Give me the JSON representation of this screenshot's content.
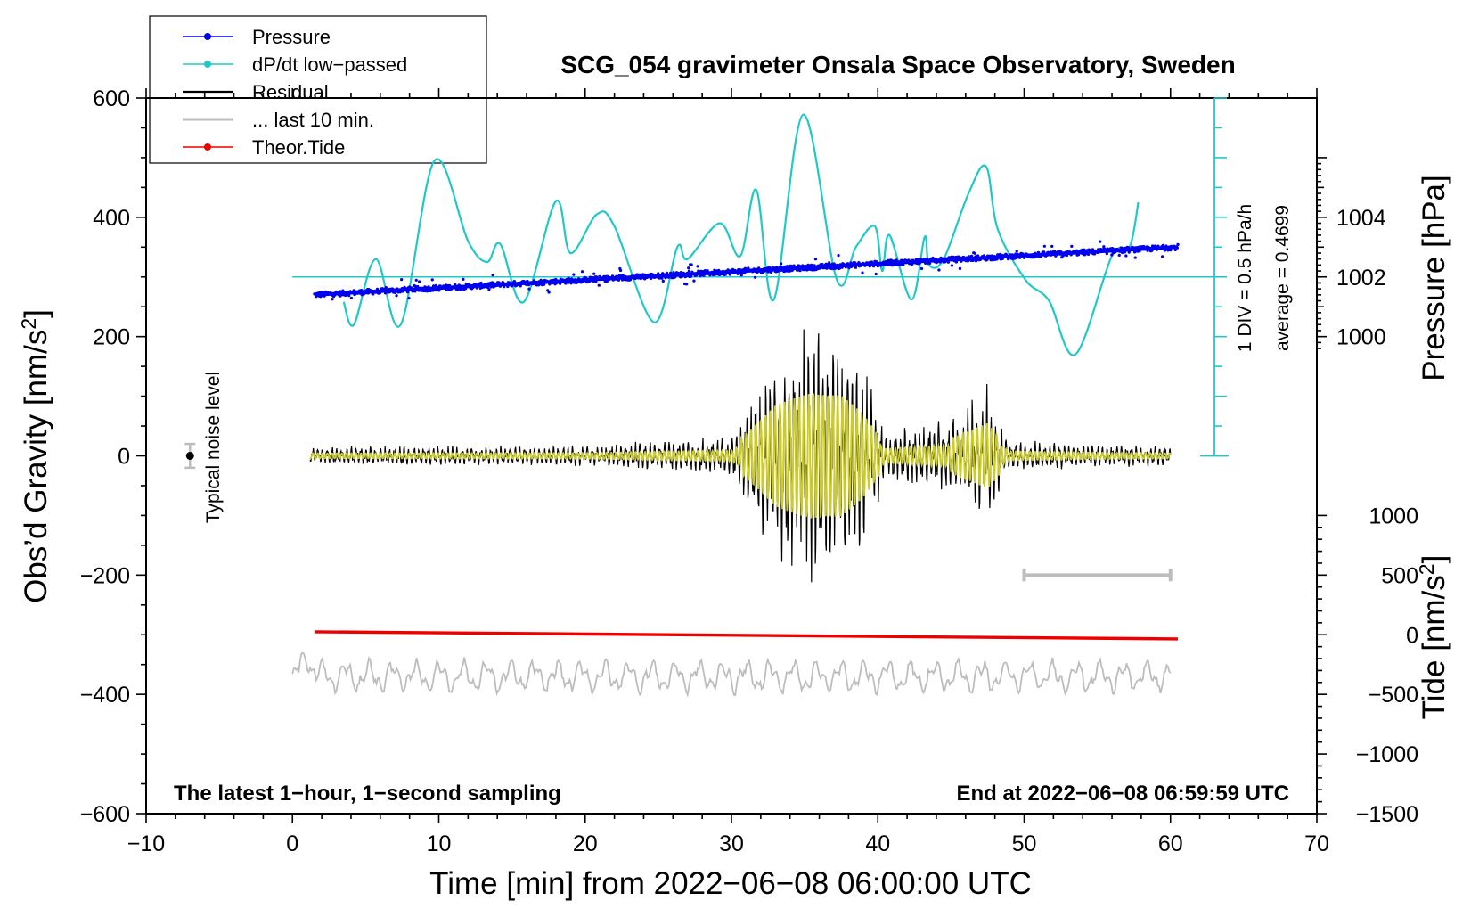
{
  "chart_data": {
    "type": "line",
    "title": "SCG_054 gravimeter Onsala Space Observatory, Sweden",
    "xlabel": "Time [min] from 2022−06−08 06:00:00 UTC",
    "ylabel_left": "Obs’d Gravity [nm/s",
    "ylabel_left_sup": "2",
    "ylabel_left_end": "]",
    "ylabel_pressure": "Pressure [hPa]",
    "ylabel_tide": "Tide [nm/s",
    "ylabel_tide_sup": "2",
    "ylabel_tide_end": "]",
    "xlim": [
      -10,
      70
    ],
    "ylim": [
      -600,
      600
    ],
    "x_ticks": [
      "−10",
      "0",
      "10",
      "20",
      "30",
      "40",
      "50",
      "60",
      "70"
    ],
    "y_ticks": [
      "600",
      "400",
      "200",
      "0",
      "−200",
      "−400",
      "−600"
    ],
    "pressure_ticks": [
      "1004",
      "1002",
      "1000"
    ],
    "tide_ticks": [
      "1000",
      "500",
      "0",
      "−500",
      "−1000",
      "−1500"
    ],
    "legend": [
      {
        "label": "Pressure",
        "color": "#0000ee",
        "marker": true
      },
      {
        "label": "dP/dt low−passed",
        "color": "#20c8c8",
        "marker": true
      },
      {
        "label": "Residual",
        "color": "#000000",
        "marker": false
      },
      {
        "label": "... last 10 min.",
        "color": "#bdbdbd",
        "marker": false
      },
      {
        "label": "Theor.Tide",
        "color": "#ee0000",
        "marker": true
      }
    ],
    "noise_label": "Typical noise level",
    "scale_text_1": "1 DIV = 0.5 hPa/h",
    "scale_text_2": "average = 0.4699",
    "note_left": "The latest 1−hour, 1−second sampling",
    "note_right": "End at 2022−06−08 06:59:59 UTC",
    "pressure": {
      "start_hPa": 1001.4,
      "end_hPa": 1003.0,
      "x_range": [
        1.5,
        60.5
      ]
    },
    "dpdt_extrema": [
      {
        "x": 3.5,
        "y": 258
      },
      {
        "x": 4.2,
        "y": 220
      },
      {
        "x": 5.7,
        "y": 330
      },
      {
        "x": 7.4,
        "y": 220
      },
      {
        "x": 9.7,
        "y": 495
      },
      {
        "x": 12.0,
        "y": 360
      },
      {
        "x": 13.3,
        "y": 325
      },
      {
        "x": 14.2,
        "y": 355
      },
      {
        "x": 15.8,
        "y": 258
      },
      {
        "x": 18.0,
        "y": 427
      },
      {
        "x": 19.0,
        "y": 340
      },
      {
        "x": 20.8,
        "y": 405
      },
      {
        "x": 22.0,
        "y": 385
      },
      {
        "x": 24.7,
        "y": 224
      },
      {
        "x": 26.3,
        "y": 350
      },
      {
        "x": 27.0,
        "y": 330
      },
      {
        "x": 29.2,
        "y": 390
      },
      {
        "x": 30.6,
        "y": 335
      },
      {
        "x": 31.7,
        "y": 446
      },
      {
        "x": 32.9,
        "y": 262
      },
      {
        "x": 34.9,
        "y": 572
      },
      {
        "x": 37.2,
        "y": 295
      },
      {
        "x": 38.5,
        "y": 350
      },
      {
        "x": 39.8,
        "y": 385
      },
      {
        "x": 40.3,
        "y": 310
      },
      {
        "x": 40.8,
        "y": 370
      },
      {
        "x": 42.3,
        "y": 262
      },
      {
        "x": 43.2,
        "y": 367
      },
      {
        "x": 43.5,
        "y": 320
      },
      {
        "x": 44.5,
        "y": 330
      },
      {
        "x": 46.2,
        "y": 440
      },
      {
        "x": 47.4,
        "y": 485
      },
      {
        "x": 48.2,
        "y": 380
      },
      {
        "x": 50.1,
        "y": 295
      },
      {
        "x": 51.7,
        "y": 260
      },
      {
        "x": 53.5,
        "y": 170
      },
      {
        "x": 56.0,
        "y": 335
      },
      {
        "x": 57.2,
        "y": 350
      },
      {
        "x": 57.8,
        "y": 425
      }
    ],
    "residual_envelope": [
      {
        "x": 1.2,
        "a": 14
      },
      {
        "x": 20,
        "a": 16
      },
      {
        "x": 26,
        "a": 25
      },
      {
        "x": 30,
        "a": 30
      },
      {
        "x": 31.5,
        "a": 100
      },
      {
        "x": 33,
        "a": 170
      },
      {
        "x": 35.5,
        "a": 215
      },
      {
        "x": 37.5,
        "a": 205
      },
      {
        "x": 39,
        "a": 140
      },
      {
        "x": 40.5,
        "a": 40
      },
      {
        "x": 45,
        "a": 60
      },
      {
        "x": 47.5,
        "a": 110
      },
      {
        "x": 49,
        "a": 25
      },
      {
        "x": 55,
        "a": 18
      },
      {
        "x": 60,
        "a": 15
      }
    ],
    "last10_range": [
      0.0,
      60.0
    ],
    "last10_center": -370,
    "tide": {
      "start": -295,
      "end": -307,
      "x_range": [
        1.5,
        60.5
      ]
    },
    "scale_bar": {
      "x": [
        50,
        60
      ],
      "y": -200
    },
    "noise_bar": {
      "x": -7,
      "y": 0,
      "halfwidth": 20
    },
    "zero_line_y": 300
  }
}
